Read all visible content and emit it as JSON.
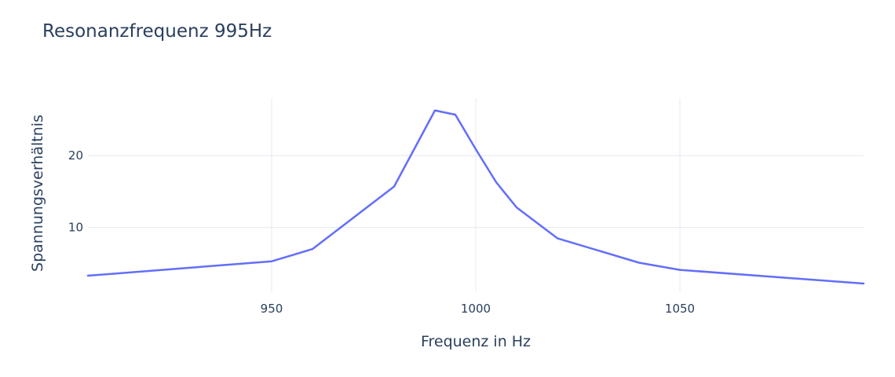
{
  "chart_data": {
    "type": "line",
    "title": "Resonanzfrequenz 995Hz",
    "xlabel": "Frequenz in Hz",
    "ylabel": "Spannungsverhältnis",
    "xlim": [
      905,
      1095
    ],
    "ylim": [
      1,
      28
    ],
    "xticks": [
      950,
      1000,
      1050
    ],
    "yticks": [
      10,
      20
    ],
    "grid": true,
    "colors": {
      "line": "#636efa",
      "grid": "#e5e8f0",
      "text": "#2a3f5f"
    },
    "series": [
      {
        "x": [
          905,
          950,
          960,
          980,
          990,
          995,
          1000,
          1005,
          1010,
          1020,
          1040,
          1050,
          1095
        ],
        "y": [
          3.3,
          5.3,
          7.0,
          15.7,
          26.3,
          25.7,
          20.9,
          16.3,
          12.8,
          8.5,
          5.1,
          4.1,
          2.2
        ]
      }
    ]
  }
}
